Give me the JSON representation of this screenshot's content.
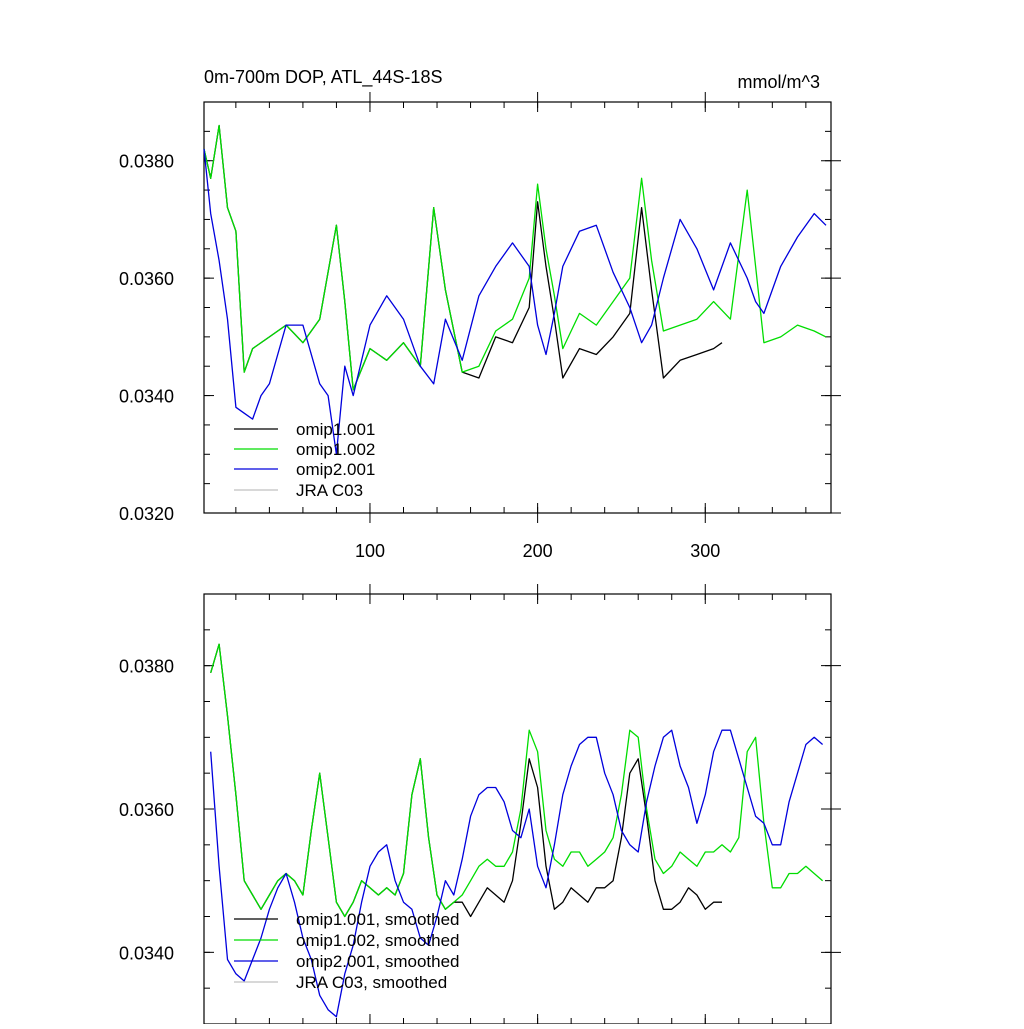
{
  "chart_data": [
    {
      "type": "line",
      "title": "0m-700m DOP, ATL_44S-18S",
      "units": "mmol/m^3",
      "xlim": [
        1,
        375
      ],
      "ylim": [
        0.032,
        0.039
      ],
      "xticks": [
        100,
        200,
        300
      ],
      "xtick_labels": [
        "100",
        "200",
        "300"
      ],
      "yticks": [
        0.032,
        0.034,
        0.036,
        0.038
      ],
      "ytick_labels": [
        "0.0320",
        "0.0340",
        "0.0360",
        "0.0380"
      ],
      "legend": [
        "omip1.001",
        "omip1.002",
        "omip2.001",
        "JRA C03"
      ],
      "series": [
        {
          "name": "omip1.001",
          "color": "#000000",
          "x": [
            1,
            5,
            10,
            15,
            20,
            25,
            30,
            40,
            50,
            60,
            70,
            80,
            85,
            90,
            100,
            110,
            120,
            130,
            138,
            145,
            155,
            165,
            175,
            185,
            195,
            200,
            205,
            210,
            215,
            225,
            235,
            245,
            255,
            262,
            268,
            275,
            285,
            295,
            305,
            310
          ],
          "y": [
            0.0382,
            0.0377,
            0.0386,
            0.0372,
            0.0368,
            0.0344,
            0.0348,
            0.035,
            0.0352,
            0.0349,
            0.0353,
            0.0369,
            0.0356,
            0.0341,
            0.0348,
            0.0346,
            0.0349,
            0.0345,
            0.0372,
            0.0358,
            0.0344,
            0.0343,
            0.035,
            0.0349,
            0.0355,
            0.0373,
            0.0362,
            0.0353,
            0.0343,
            0.0348,
            0.0347,
            0.035,
            0.0354,
            0.0372,
            0.0358,
            0.0343,
            0.0346,
            0.0347,
            0.0348,
            0.0349
          ]
        },
        {
          "name": "omip1.002",
          "color": "#00dd00",
          "x": [
            1,
            5,
            10,
            15,
            20,
            25,
            30,
            40,
            50,
            60,
            70,
            80,
            85,
            90,
            100,
            110,
            120,
            130,
            138,
            145,
            155,
            165,
            175,
            185,
            195,
            200,
            205,
            210,
            215,
            225,
            235,
            245,
            255,
            262,
            268,
            275,
            285,
            295,
            305,
            315,
            325,
            330,
            335,
            345,
            355,
            365,
            372
          ],
          "y": [
            0.0382,
            0.0377,
            0.0386,
            0.0372,
            0.0368,
            0.0344,
            0.0348,
            0.035,
            0.0352,
            0.0349,
            0.0353,
            0.0369,
            0.0356,
            0.0341,
            0.0348,
            0.0346,
            0.0349,
            0.0345,
            0.0372,
            0.0358,
            0.0344,
            0.0345,
            0.0351,
            0.0353,
            0.036,
            0.0376,
            0.0365,
            0.0357,
            0.0348,
            0.0354,
            0.0352,
            0.0356,
            0.036,
            0.0377,
            0.0363,
            0.0351,
            0.0352,
            0.0353,
            0.0356,
            0.0353,
            0.0375,
            0.0362,
            0.0349,
            0.035,
            0.0352,
            0.0351,
            0.035
          ]
        },
        {
          "name": "omip2.001",
          "color": "#0000dd",
          "x": [
            1,
            5,
            10,
            15,
            20,
            25,
            30,
            35,
            40,
            50,
            60,
            70,
            75,
            80,
            85,
            90,
            100,
            110,
            120,
            130,
            138,
            145,
            155,
            165,
            175,
            185,
            195,
            200,
            205,
            210,
            215,
            225,
            235,
            245,
            255,
            262,
            268,
            275,
            285,
            295,
            305,
            315,
            325,
            330,
            335,
            345,
            355,
            365,
            372
          ],
          "y": [
            0.0382,
            0.0371,
            0.0363,
            0.0353,
            0.0338,
            0.0337,
            0.0336,
            0.034,
            0.0342,
            0.0352,
            0.0352,
            0.0342,
            0.034,
            0.033,
            0.0345,
            0.034,
            0.0352,
            0.0357,
            0.0353,
            0.0345,
            0.0342,
            0.0353,
            0.0346,
            0.0357,
            0.0362,
            0.0366,
            0.0362,
            0.0352,
            0.0347,
            0.0354,
            0.0362,
            0.0368,
            0.0369,
            0.0361,
            0.0355,
            0.0349,
            0.0352,
            0.036,
            0.037,
            0.0365,
            0.0358,
            0.0366,
            0.036,
            0.0356,
            0.0354,
            0.0362,
            0.0367,
            0.0371,
            0.0369
          ]
        }
      ]
    },
    {
      "type": "line",
      "title": "",
      "xlim": [
        1,
        375
      ],
      "ylim": [
        0.033,
        0.039
      ],
      "xticks": [
        100,
        200,
        300
      ],
      "xtick_labels": [],
      "yticks": [
        0.034,
        0.036,
        0.038
      ],
      "ytick_labels": [
        "0.0340",
        "0.0360",
        "0.0380"
      ],
      "legend": [
        "omip1.001, smoothed",
        "omip1.002, smoothed",
        "omip2.001, smoothed",
        "JRA C03, smoothed"
      ],
      "series": [
        {
          "name": "omip1.001, smoothed",
          "color": "#000000",
          "x": [
            5,
            10,
            15,
            20,
            25,
            30,
            35,
            40,
            45,
            50,
            55,
            60,
            65,
            70,
            75,
            80,
            85,
            90,
            95,
            100,
            105,
            110,
            115,
            120,
            125,
            130,
            135,
            140,
            145,
            150,
            155,
            160,
            165,
            170,
            175,
            180,
            185,
            190,
            195,
            200,
            205,
            210,
            215,
            220,
            225,
            230,
            235,
            240,
            245,
            250,
            255,
            260,
            265,
            270,
            275,
            280,
            285,
            290,
            295,
            300,
            305,
            310
          ],
          "y": [
            0.0379,
            0.0383,
            0.0373,
            0.0362,
            0.035,
            0.0348,
            0.0346,
            0.0348,
            0.035,
            0.0351,
            0.035,
            0.0348,
            0.0357,
            0.0365,
            0.0356,
            0.0347,
            0.0345,
            0.0347,
            0.035,
            0.0349,
            0.0348,
            0.0349,
            0.0348,
            0.0351,
            0.0362,
            0.0367,
            0.0356,
            0.0348,
            0.0346,
            0.0347,
            0.0347,
            0.0345,
            0.0347,
            0.0349,
            0.0348,
            0.0347,
            0.035,
            0.0358,
            0.0367,
            0.0363,
            0.0352,
            0.0346,
            0.0347,
            0.0349,
            0.0348,
            0.0347,
            0.0349,
            0.0349,
            0.035,
            0.0356,
            0.0365,
            0.0367,
            0.0359,
            0.035,
            0.0346,
            0.0346,
            0.0347,
            0.0349,
            0.0348,
            0.0346,
            0.0347,
            0.0347
          ]
        },
        {
          "name": "omip1.002, smoothed",
          "color": "#00dd00",
          "x": [
            5,
            10,
            15,
            20,
            25,
            30,
            35,
            40,
            45,
            50,
            55,
            60,
            65,
            70,
            75,
            80,
            85,
            90,
            95,
            100,
            105,
            110,
            115,
            120,
            125,
            130,
            135,
            140,
            145,
            150,
            155,
            160,
            165,
            170,
            175,
            180,
            185,
            190,
            195,
            200,
            205,
            210,
            215,
            220,
            225,
            230,
            235,
            240,
            245,
            250,
            255,
            260,
            265,
            270,
            275,
            280,
            285,
            290,
            295,
            300,
            305,
            310,
            315,
            320,
            325,
            330,
            335,
            340,
            345,
            350,
            355,
            360,
            365,
            370
          ],
          "y": [
            0.0379,
            0.0383,
            0.0373,
            0.0362,
            0.035,
            0.0348,
            0.0346,
            0.0348,
            0.035,
            0.0351,
            0.035,
            0.0348,
            0.0357,
            0.0365,
            0.0356,
            0.0347,
            0.0345,
            0.0347,
            0.035,
            0.0349,
            0.0348,
            0.0349,
            0.0348,
            0.0351,
            0.0362,
            0.0367,
            0.0356,
            0.0348,
            0.0346,
            0.0347,
            0.0348,
            0.035,
            0.0352,
            0.0353,
            0.0352,
            0.0352,
            0.0354,
            0.036,
            0.0371,
            0.0368,
            0.0357,
            0.0353,
            0.0352,
            0.0354,
            0.0354,
            0.0352,
            0.0353,
            0.0354,
            0.0356,
            0.0362,
            0.0371,
            0.037,
            0.036,
            0.0353,
            0.0351,
            0.0352,
            0.0354,
            0.0353,
            0.0352,
            0.0354,
            0.0354,
            0.0355,
            0.0354,
            0.0356,
            0.0368,
            0.037,
            0.0358,
            0.0349,
            0.0349,
            0.0351,
            0.0351,
            0.0352,
            0.0351,
            0.035
          ]
        },
        {
          "name": "omip2.001, smoothed",
          "color": "#0000dd",
          "x": [
            5,
            10,
            15,
            20,
            25,
            30,
            35,
            40,
            45,
            50,
            55,
            60,
            65,
            70,
            75,
            80,
            85,
            90,
            95,
            100,
            105,
            110,
            115,
            120,
            125,
            130,
            135,
            140,
            145,
            150,
            155,
            160,
            165,
            170,
            175,
            180,
            185,
            190,
            195,
            200,
            205,
            210,
            215,
            220,
            225,
            230,
            235,
            240,
            245,
            250,
            255,
            260,
            265,
            270,
            275,
            280,
            285,
            290,
            295,
            300,
            305,
            310,
            315,
            320,
            325,
            330,
            335,
            340,
            345,
            350,
            355,
            360,
            365,
            370
          ],
          "y": [
            0.0368,
            0.0352,
            0.0339,
            0.0337,
            0.0336,
            0.0339,
            0.0342,
            0.0346,
            0.0349,
            0.0351,
            0.0347,
            0.0342,
            0.0339,
            0.0334,
            0.0332,
            0.0331,
            0.0337,
            0.0341,
            0.0347,
            0.0352,
            0.0354,
            0.0355,
            0.035,
            0.0347,
            0.0346,
            0.0342,
            0.0341,
            0.0345,
            0.035,
            0.0348,
            0.0353,
            0.0359,
            0.0362,
            0.0363,
            0.0363,
            0.0361,
            0.0357,
            0.0356,
            0.036,
            0.0352,
            0.0349,
            0.0355,
            0.0362,
            0.0366,
            0.0369,
            0.037,
            0.037,
            0.0365,
            0.0362,
            0.0357,
            0.0355,
            0.0354,
            0.0361,
            0.0366,
            0.037,
            0.0371,
            0.0366,
            0.0363,
            0.0358,
            0.0362,
            0.0368,
            0.0371,
            0.0371,
            0.0367,
            0.0363,
            0.0359,
            0.0358,
            0.0355,
            0.0355,
            0.0361,
            0.0365,
            0.0369,
            0.037,
            0.0369
          ]
        }
      ]
    }
  ]
}
